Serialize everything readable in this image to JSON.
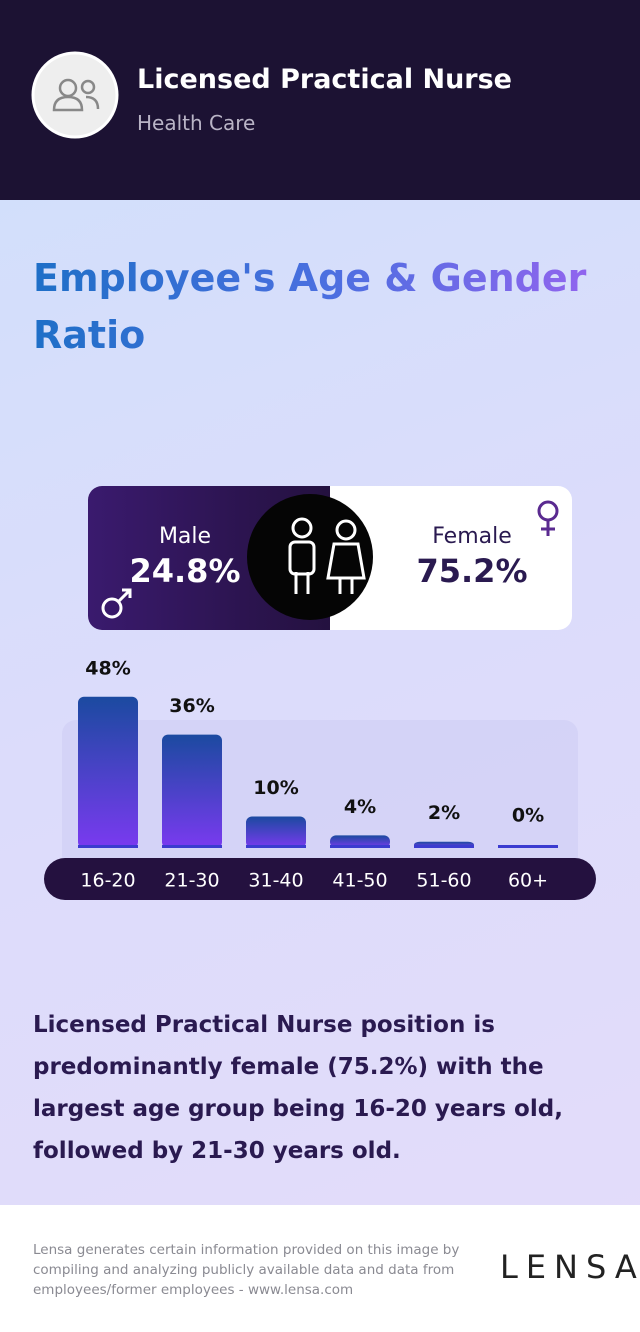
{
  "header": {
    "title": "Licensed Practical Nurse",
    "subtitle": "Health Care"
  },
  "heading": "Employee's Age & Gender Ratio",
  "gender": {
    "male_label": "Male",
    "male_value": "24.8%",
    "female_label": "Female",
    "female_value": "75.2%"
  },
  "chart_data": {
    "type": "bar",
    "categories": [
      "16-20",
      "21-30",
      "31-40",
      "41-50",
      "51-60",
      "60+"
    ],
    "values": [
      48,
      36,
      10,
      4,
      2,
      0
    ],
    "value_labels": [
      "48%",
      "36%",
      "10%",
      "4%",
      "2%",
      "0%"
    ]
  },
  "description": "Licensed Practical Nurse position is predominantly female (75.2%) with the largest age group being 16-20 years old, followed by 21-30 years old.",
  "footer": {
    "disclaimer": "Lensa generates certain information provided on this image by compiling and analyzing publicly available data and data from employees/former employees - www.lensa.com",
    "logo": "LENSA"
  }
}
